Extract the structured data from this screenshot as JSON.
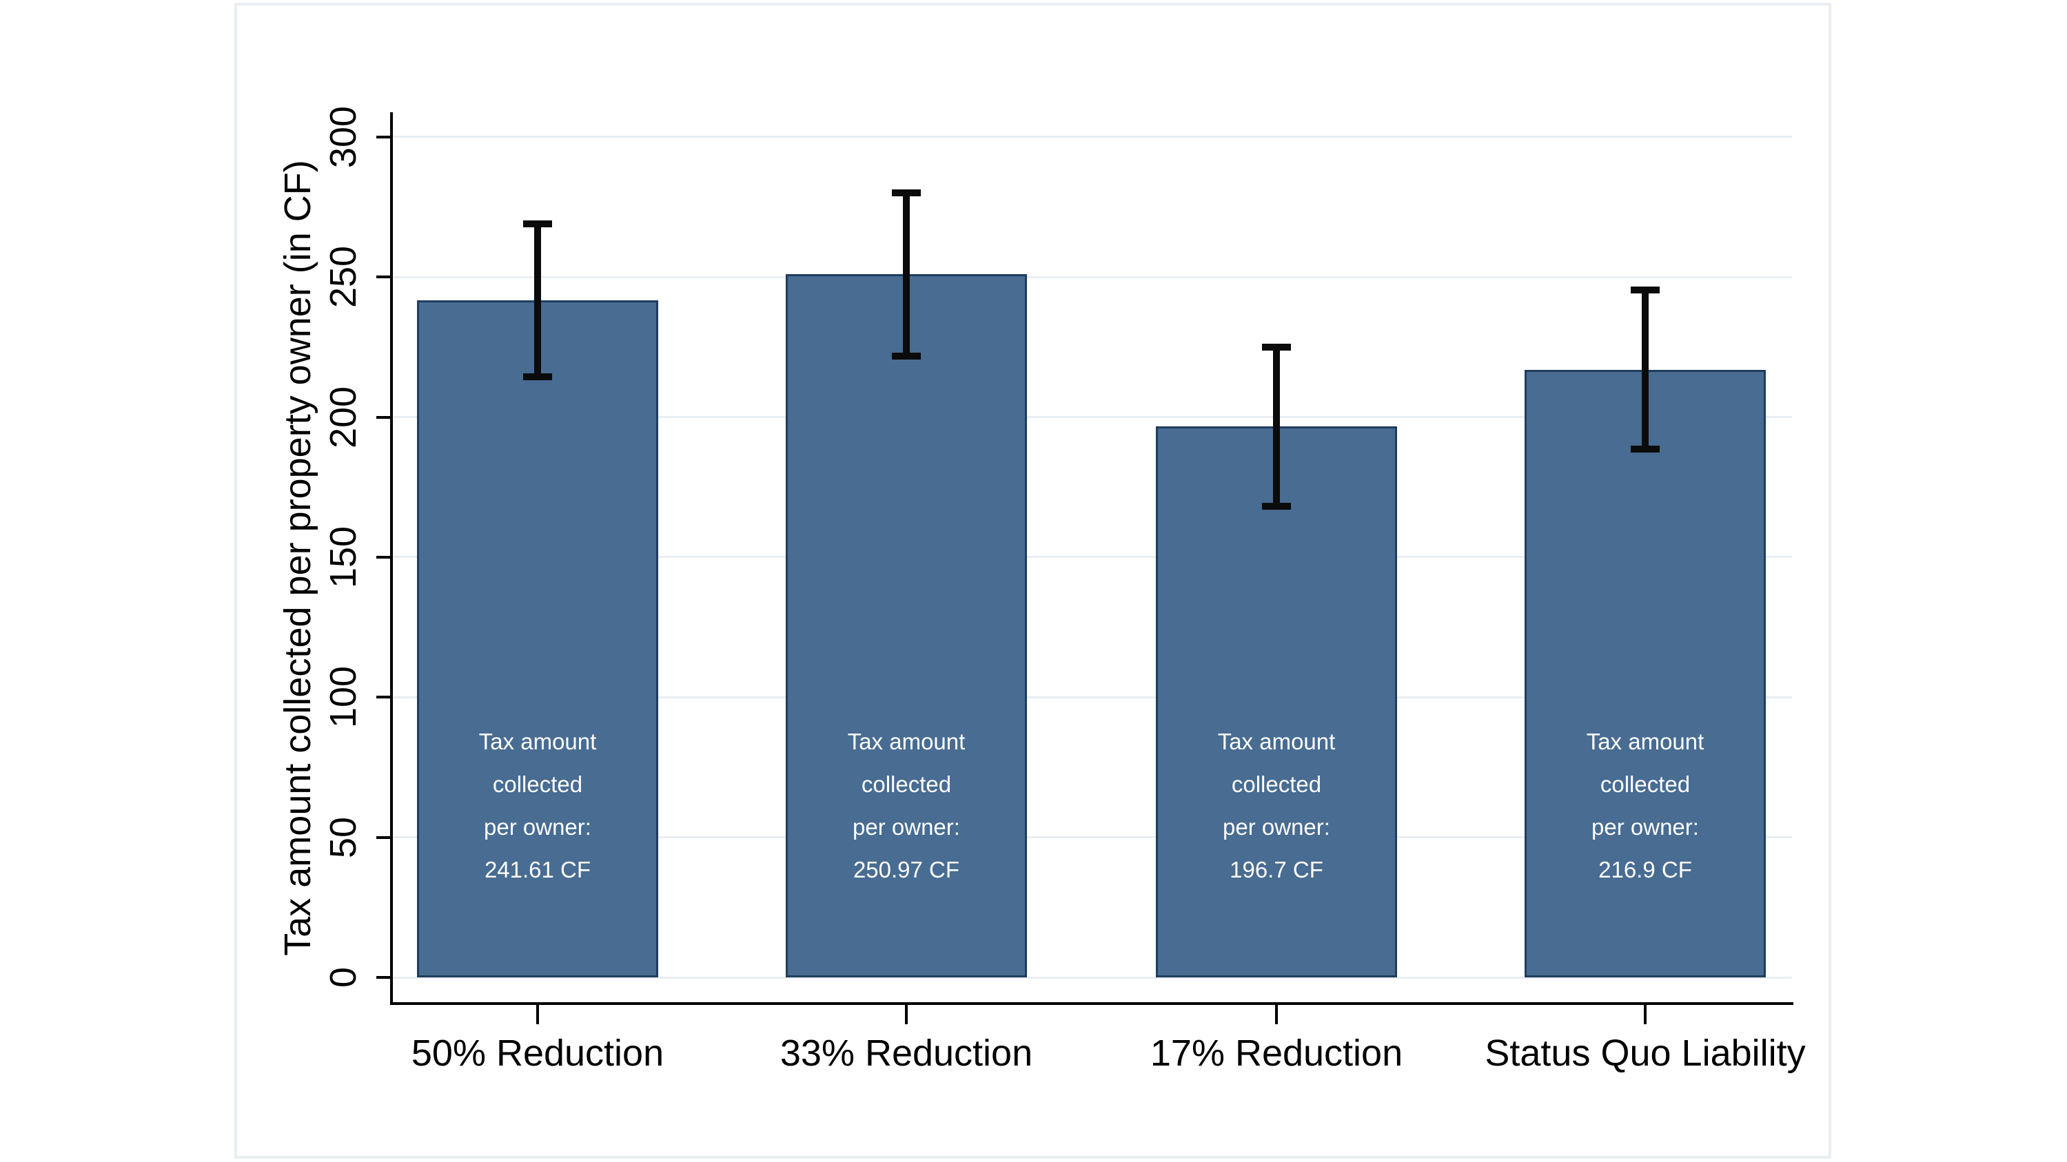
{
  "figure": {
    "background_color": "#ffffff",
    "panel_border_color": "#e9eef2"
  },
  "chart_data": {
    "type": "bar",
    "title": "",
    "xlabel": "",
    "ylabel": "Tax amount collected per property owner (in CF)",
    "ylim": [
      0,
      310
    ],
    "yticks": [
      0,
      50,
      100,
      150,
      200,
      250,
      300
    ],
    "grid": true,
    "legend": "none",
    "bar_color": "#486c92",
    "bar_border_color": "#1f3d5e",
    "gridline_color": "#e9eef2",
    "axis_color": "#000000",
    "error_bar_color": "#0b0b0b",
    "bar_text_color": "#ffffff",
    "bars": [
      {
        "category": "50% Reduction",
        "value": 241.61,
        "ci_low": 214.4,
        "ci_high": 268.9,
        "label": "Tax amount\ncollected\nper owner:\n241.61 CF"
      },
      {
        "category": "33% Reduction",
        "value": 250.97,
        "ci_low": 221.8,
        "ci_high": 280.2,
        "label": "Tax amount\ncollected\nper owner:\n250.97 CF"
      },
      {
        "category": "17% Reduction",
        "value": 196.7,
        "ci_low": 168.3,
        "ci_high": 225.1,
        "label": "Tax amount\ncollected\nper owner:\n196.7 CF"
      },
      {
        "category": "Status Quo Liability",
        "value": 216.9,
        "ci_low": 188.5,
        "ci_high": 245.3,
        "label": "Tax amount\ncollected\nper owner:\n216.9 CF"
      }
    ]
  }
}
